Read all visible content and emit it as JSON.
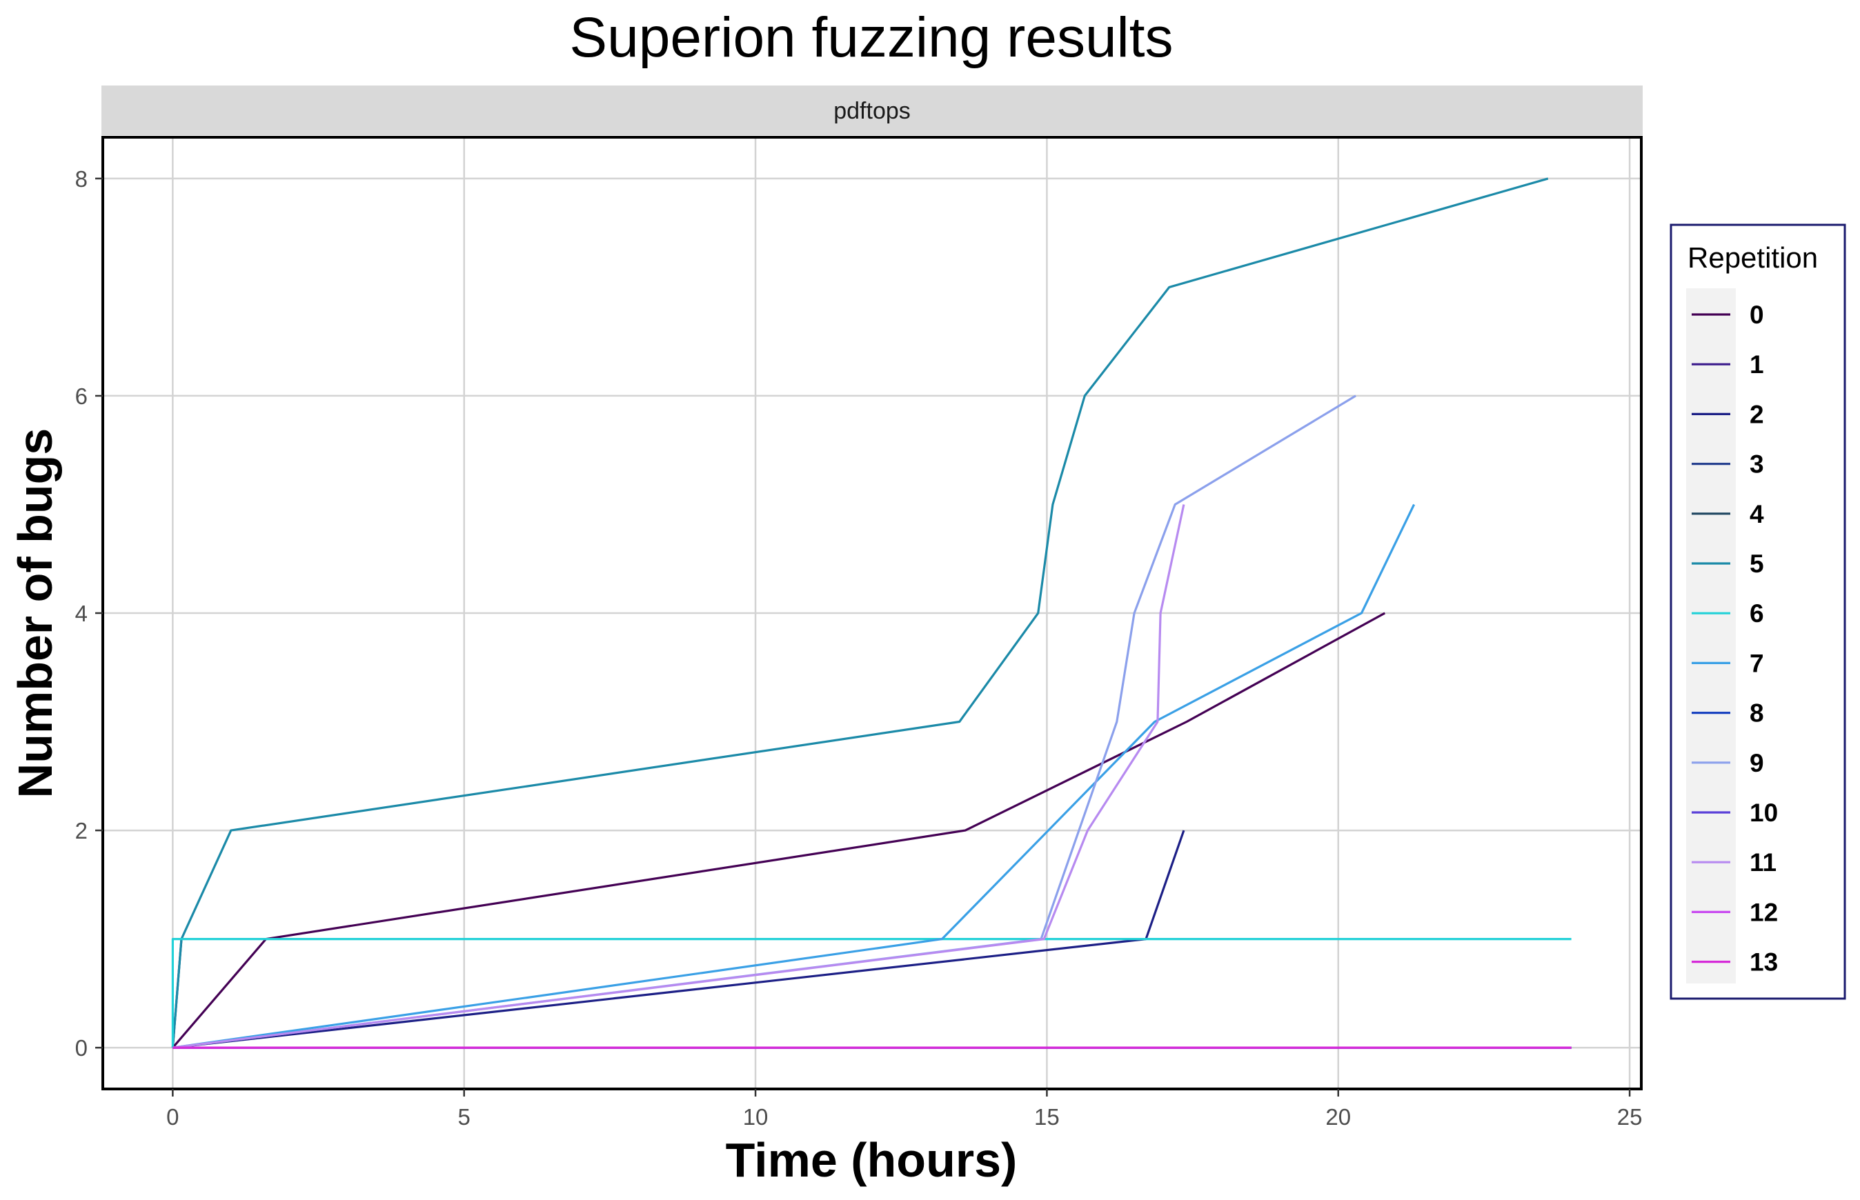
{
  "chart_data": {
    "type": "line",
    "title": "Superion fuzzing results",
    "facet": "pdftops",
    "xlabel": "Time (hours)",
    "ylabel": "Number of bugs",
    "xlim": [
      -1.2,
      25.2
    ],
    "ylim": [
      -0.38,
      8.38
    ],
    "x_ticks": [
      0,
      5,
      10,
      15,
      20,
      25
    ],
    "y_ticks": [
      0,
      2,
      4,
      6,
      8
    ],
    "grid": true,
    "legend": {
      "title": "Repetition",
      "position": "right"
    },
    "series": [
      {
        "name": "0",
        "color": "#440154",
        "points": [
          [
            0,
            0
          ],
          [
            0,
            0
          ],
          [
            1.6,
            1
          ],
          [
            13.6,
            2
          ],
          [
            17.4,
            3
          ],
          [
            20.8,
            4
          ]
        ]
      },
      {
        "name": "1",
        "color": "#3b1a8c",
        "points": [
          [
            0,
            0
          ],
          [
            24,
            0
          ]
        ]
      },
      {
        "name": "2",
        "color": "#1c1f86",
        "points": [
          [
            0,
            0
          ],
          [
            16.7,
            1
          ],
          [
            17.35,
            2
          ]
        ]
      },
      {
        "name": "3",
        "color": "#26408f",
        "points": [
          [
            0,
            0
          ],
          [
            24,
            0
          ]
        ]
      },
      {
        "name": "4",
        "color": "#1e4660",
        "points": [
          [
            0,
            0
          ],
          [
            0.15,
            1
          ]
        ]
      },
      {
        "name": "5",
        "color": "#1b8aa8",
        "points": [
          [
            0,
            0
          ],
          [
            0.15,
            1
          ],
          [
            1,
            2
          ],
          [
            13.5,
            3
          ],
          [
            14.85,
            4
          ],
          [
            15.1,
            5
          ],
          [
            15.65,
            6
          ],
          [
            17.1,
            7
          ],
          [
            23.6,
            8
          ]
        ]
      },
      {
        "name": "6",
        "color": "#22d1d8",
        "points": [
          [
            0,
            0
          ],
          [
            0,
            1
          ],
          [
            24,
            1
          ]
        ]
      },
      {
        "name": "7",
        "color": "#3aa0e6",
        "points": [
          [
            0,
            0
          ],
          [
            13.2,
            1
          ],
          [
            16.85,
            3
          ],
          [
            20.4,
            4
          ],
          [
            21.3,
            5
          ]
        ]
      },
      {
        "name": "8",
        "color": "#1a43c0",
        "points": [
          [
            0,
            0
          ],
          [
            24,
            0
          ]
        ]
      },
      {
        "name": "9",
        "color": "#8ba0ec",
        "points": [
          [
            0,
            0
          ],
          [
            14.9,
            1
          ],
          [
            16.2,
            3
          ],
          [
            16.5,
            4
          ],
          [
            17.2,
            5
          ],
          [
            20.3,
            6
          ]
        ]
      },
      {
        "name": "10",
        "color": "#5a3fd9",
        "points": [
          [
            0,
            0
          ],
          [
            24,
            0
          ]
        ]
      },
      {
        "name": "11",
        "color": "#b78af0",
        "points": [
          [
            0,
            0
          ],
          [
            14.95,
            1
          ],
          [
            15.7,
            2
          ],
          [
            16.9,
            3
          ],
          [
            16.95,
            4
          ],
          [
            17.35,
            5
          ]
        ]
      },
      {
        "name": "12",
        "color": "#c84af0",
        "points": [
          [
            0,
            0
          ],
          [
            24,
            0
          ]
        ]
      },
      {
        "name": "13",
        "color": "#d52ad8",
        "points": [
          [
            0,
            0
          ],
          [
            24,
            0
          ]
        ]
      }
    ]
  }
}
